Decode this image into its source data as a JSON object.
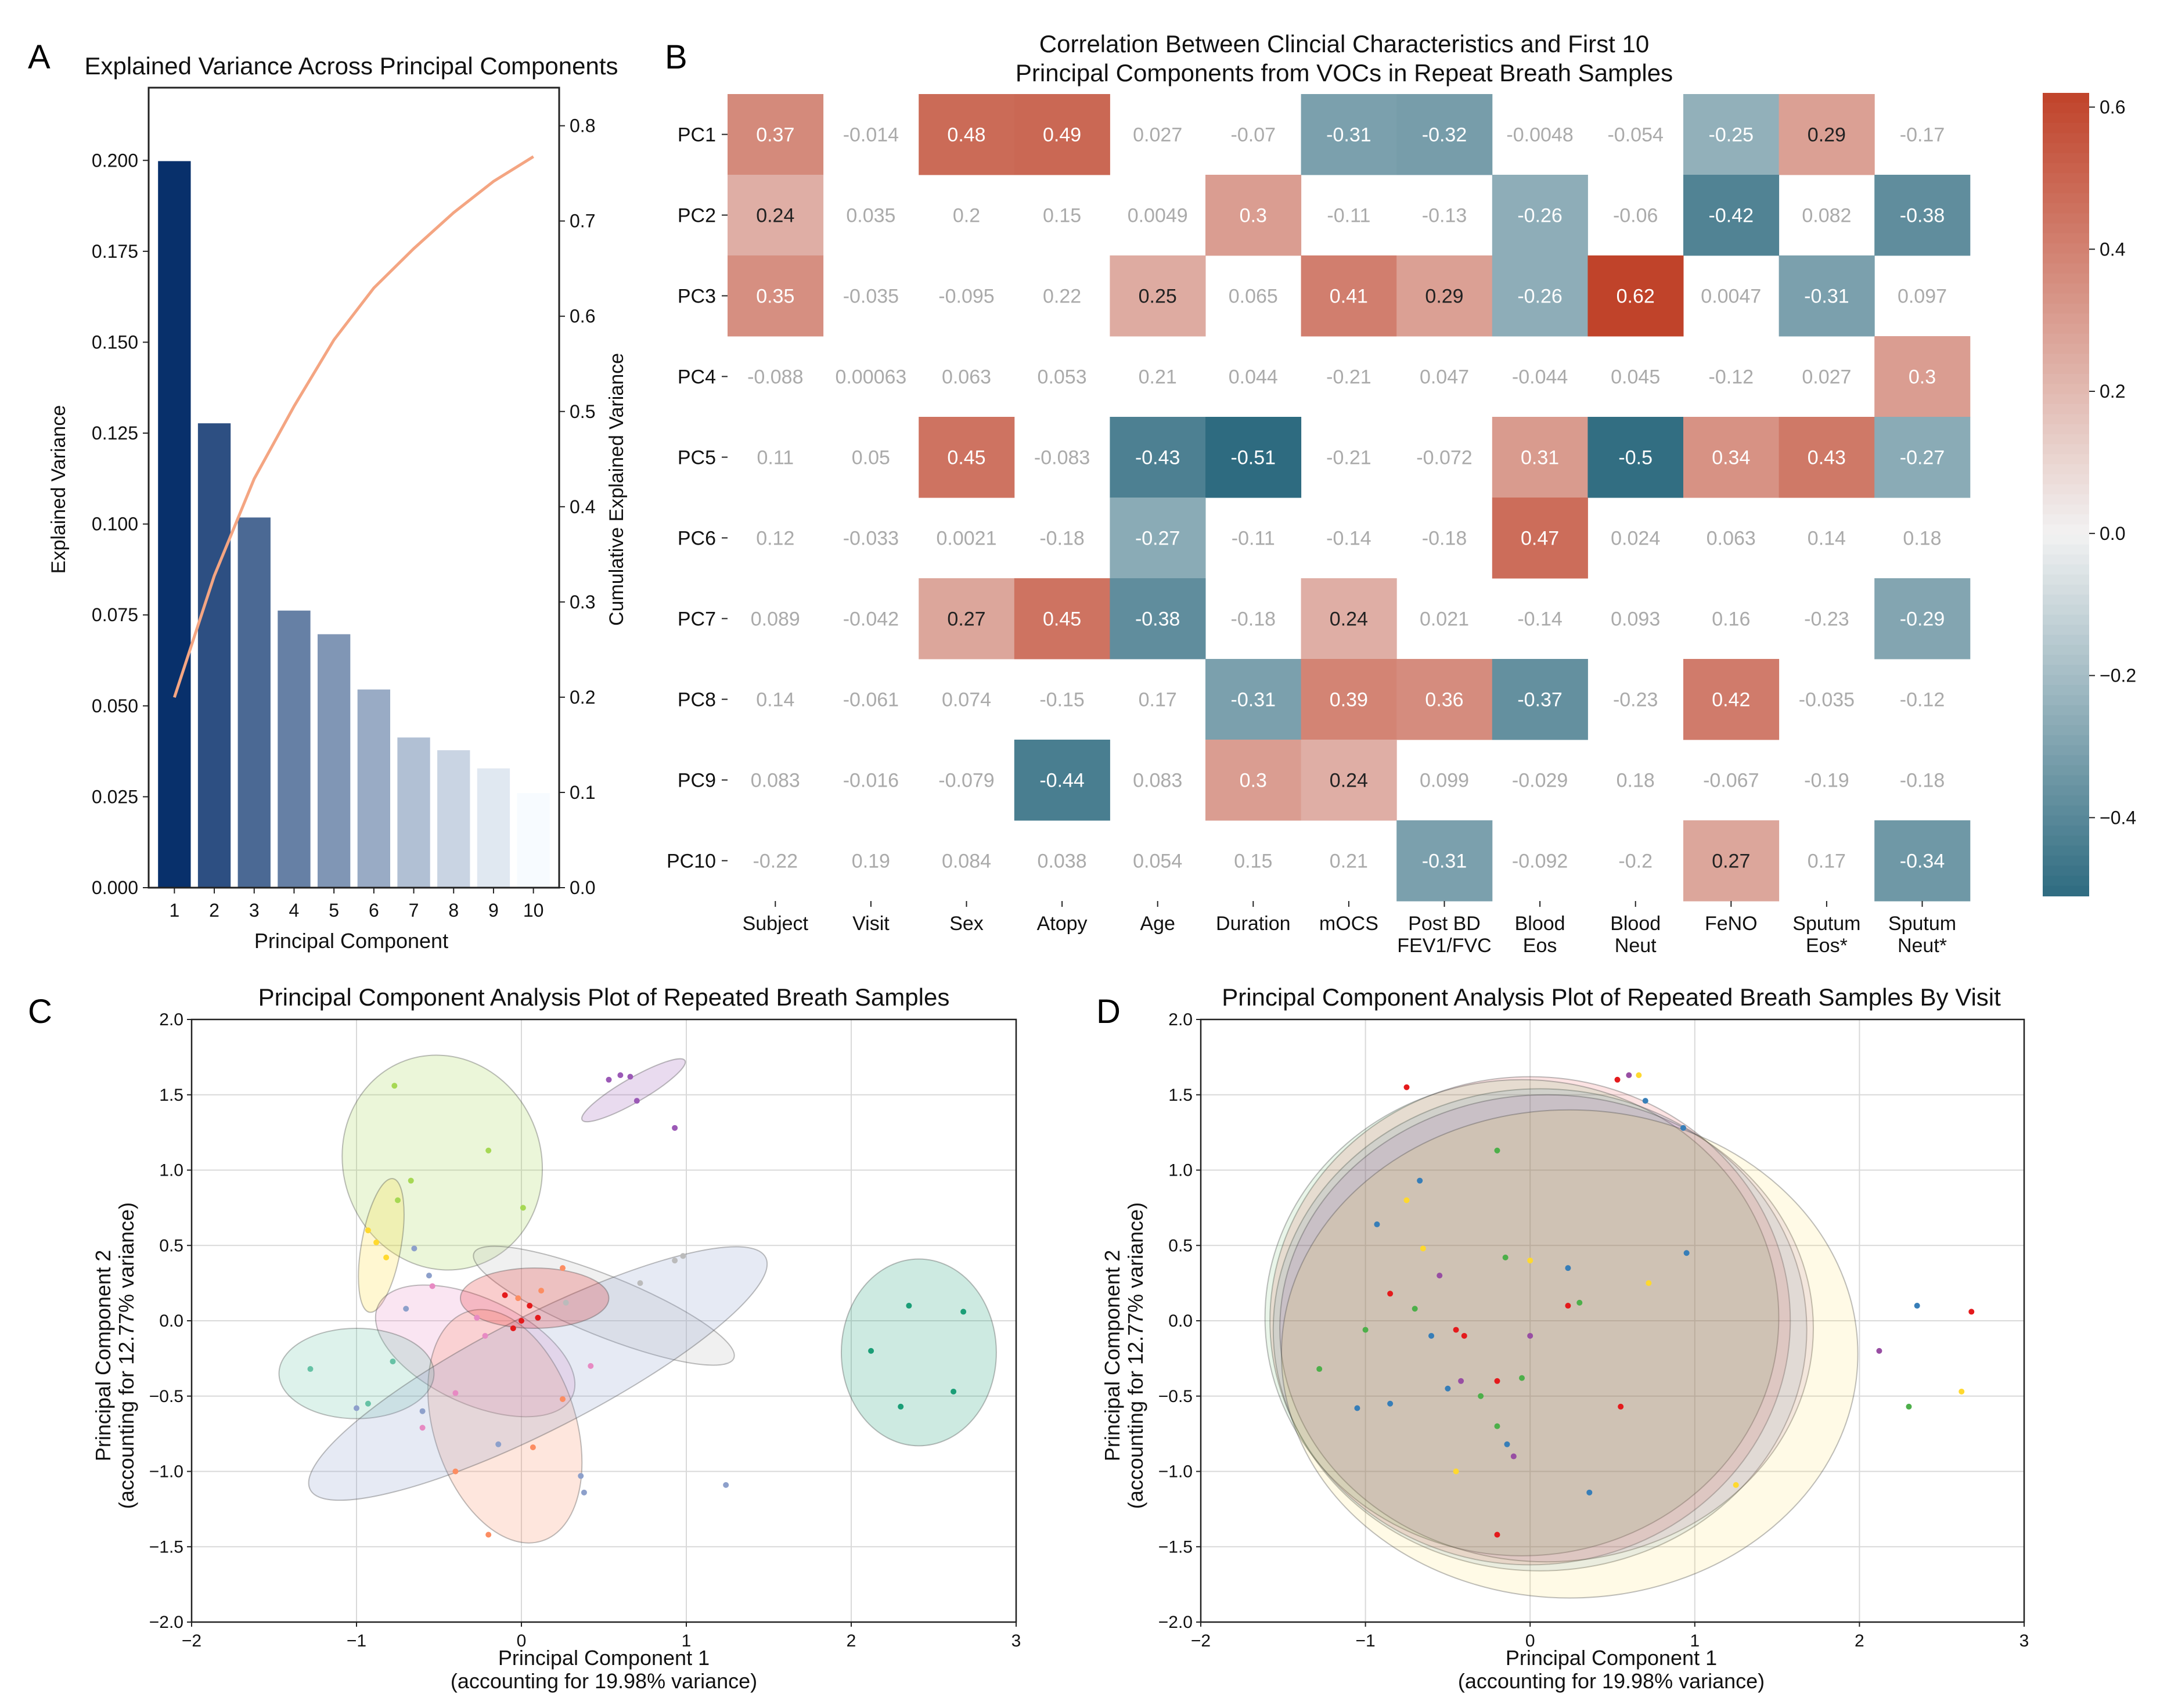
{
  "chart_data": [
    {
      "panel": "A",
      "type": "bar",
      "title": "Explained Variance Across Principal Components",
      "xlabel": "Principal Component",
      "ylabel": "Explained Variance",
      "y2label": "Cumulative Explained Variance",
      "categories": [
        "1",
        "2",
        "3",
        "4",
        "5",
        "6",
        "7",
        "8",
        "9",
        "10"
      ],
      "values": [
        0.1998,
        0.1277,
        0.1018,
        0.0762,
        0.0697,
        0.0545,
        0.0413,
        0.0378,
        0.0328,
        0.026
      ],
      "cumulative": [
        0.1998,
        0.3275,
        0.4293,
        0.5055,
        0.5752,
        0.6297,
        0.671,
        0.7088,
        0.7416,
        0.7676
      ],
      "ylim": [
        0,
        0.22
      ],
      "y2lim": [
        0,
        0.84
      ],
      "yticks": [
        "0.000",
        "0.025",
        "0.050",
        "0.075",
        "0.100",
        "0.125",
        "0.150",
        "0.175",
        "0.200"
      ],
      "y2ticks": [
        "0.0",
        "0.1",
        "0.2",
        "0.3",
        "0.4",
        "0.5",
        "0.6",
        "0.7",
        "0.8"
      ],
      "colors": {
        "line": "#f4a582",
        "bar_dark": "#08306b",
        "bar_light": "#f7fbff"
      }
    },
    {
      "panel": "B",
      "type": "heatmap",
      "title": "Correlation Between Clincial Characteristics and First 10",
      "title_line2": "Principal Components from VOCs in Repeat Breath Samples",
      "rows": [
        "PC1",
        "PC2",
        "PC3",
        "PC4",
        "PC5",
        "PC6",
        "PC7",
        "PC8",
        "PC9",
        "PC10"
      ],
      "columns": [
        [
          "Subject"
        ],
        [
          "Visit"
        ],
        [
          "Sex"
        ],
        [
          "Atopy"
        ],
        [
          "Age"
        ],
        [
          "Duration"
        ],
        [
          "mOCS"
        ],
        [
          "Post BD",
          "FEV1/FVC"
        ],
        [
          "Blood",
          "Eos"
        ],
        [
          "Blood",
          "Neut"
        ],
        [
          "FeNO"
        ],
        [
          "Sputum",
          "Eos*"
        ],
        [
          "Sputum",
          "Neut*"
        ]
      ],
      "values": [
        [
          0.37,
          -0.014,
          0.48,
          0.49,
          0.027,
          -0.07,
          -0.31,
          -0.32,
          -0.0048,
          -0.054,
          -0.25,
          0.29,
          -0.17
        ],
        [
          0.24,
          0.035,
          0.2,
          0.15,
          0.0049,
          0.3,
          -0.11,
          -0.13,
          -0.26,
          -0.06,
          -0.42,
          0.082,
          -0.38
        ],
        [
          0.35,
          -0.035,
          -0.095,
          0.22,
          0.25,
          0.065,
          0.41,
          0.29,
          -0.26,
          0.62,
          0.0047,
          -0.31,
          0.097
        ],
        [
          -0.088,
          0.00063,
          0.063,
          0.053,
          0.21,
          0.044,
          -0.21,
          0.047,
          -0.044,
          0.045,
          -0.12,
          0.027,
          0.3
        ],
        [
          0.11,
          0.05,
          0.45,
          -0.083,
          -0.43,
          -0.51,
          -0.21,
          -0.072,
          0.31,
          -0.5,
          0.34,
          0.43,
          -0.27
        ],
        [
          0.12,
          -0.033,
          0.0021,
          -0.18,
          -0.27,
          -0.11,
          -0.14,
          -0.18,
          0.47,
          0.024,
          0.063,
          0.14,
          0.18
        ],
        [
          0.089,
          -0.042,
          0.27,
          0.45,
          -0.38,
          -0.18,
          0.24,
          0.021,
          -0.14,
          0.093,
          0.16,
          -0.23,
          -0.29
        ],
        [
          0.14,
          -0.061,
          0.074,
          -0.15,
          0.17,
          -0.31,
          0.39,
          0.36,
          -0.37,
          -0.23,
          0.42,
          -0.035,
          -0.12
        ],
        [
          0.083,
          -0.016,
          -0.079,
          -0.44,
          0.083,
          0.3,
          0.24,
          0.099,
          -0.029,
          0.18,
          -0.067,
          -0.19,
          -0.18
        ],
        [
          -0.22,
          0.19,
          0.084,
          0.038,
          0.054,
          0.15,
          0.21,
          -0.31,
          -0.092,
          -0.2,
          0.27,
          0.17,
          -0.34
        ]
      ],
      "labels": [
        [
          "0.37",
          "-0.014",
          "0.48",
          "0.49",
          "0.027",
          "-0.07",
          "-0.31",
          "-0.32",
          "-0.0048",
          "-0.054",
          "-0.25",
          "0.29",
          "-0.17"
        ],
        [
          "0.24",
          "0.035",
          "0.2",
          "0.15",
          "0.0049",
          "0.3",
          "-0.11",
          "-0.13",
          "-0.26",
          "-0.06",
          "-0.42",
          "0.082",
          "-0.38"
        ],
        [
          "0.35",
          "-0.035",
          "-0.095",
          "0.22",
          "0.25",
          "0.065",
          "0.41",
          "0.29",
          "-0.26",
          "0.62",
          "0.0047",
          "-0.31",
          "0.097"
        ],
        [
          "-0.088",
          "0.00063",
          "0.063",
          "0.053",
          "0.21",
          "0.044",
          "-0.21",
          "0.047",
          "-0.044",
          "0.045",
          "-0.12",
          "0.027",
          "0.3"
        ],
        [
          "0.11",
          "0.05",
          "0.45",
          "-0.083",
          "-0.43",
          "-0.51",
          "-0.21",
          "-0.072",
          "0.31",
          "-0.5",
          "0.34",
          "0.43",
          "-0.27"
        ],
        [
          "0.12",
          "-0.033",
          "0.0021",
          "-0.18",
          "-0.27",
          "-0.11",
          "-0.14",
          "-0.18",
          "0.47",
          "0.024",
          "0.063",
          "0.14",
          "0.18"
        ],
        [
          "0.089",
          "-0.042",
          "0.27",
          "0.45",
          "-0.38",
          "-0.18",
          "0.24",
          "0.021",
          "-0.14",
          "0.093",
          "0.16",
          "-0.23",
          "-0.29"
        ],
        [
          "0.14",
          "-0.061",
          "0.074",
          "-0.15",
          "0.17",
          "-0.31",
          "0.39",
          "0.36",
          "-0.37",
          "-0.23",
          "0.42",
          "-0.035",
          "-0.12"
        ],
        [
          "0.083",
          "-0.016",
          "-0.079",
          "-0.44",
          "0.083",
          "0.3",
          "0.24",
          "0.099",
          "-0.029",
          "0.18",
          "-0.067",
          "-0.19",
          "-0.18"
        ],
        [
          "-0.22",
          "0.19",
          "0.084",
          "0.038",
          "0.054",
          "0.15",
          "0.21",
          "-0.31",
          "-0.092",
          "-0.2",
          "0.27",
          "0.17",
          "-0.34"
        ]
      ],
      "significance_threshold": 0.24,
      "colorbar": {
        "min": -0.51,
        "max": 0.62,
        "ticks": [
          0.6,
          0.4,
          0.2,
          0.0,
          -0.2,
          -0.4
        ],
        "tick_labels": [
          "0.6",
          "0.4",
          "0.2",
          "0.0",
          "−0.2",
          "−0.4"
        ]
      },
      "colors": {
        "negative": "#2e6b80",
        "neutral": "#f2f2f2",
        "positive": "#c0432a",
        "masked_text": "#aaaaaa",
        "cell_text_dark": "#222222",
        "cell_text_light": "#ffffff"
      }
    },
    {
      "panel": "C",
      "type": "scatter",
      "title": "Principal Component Analysis Plot of Repeated Breath Samples",
      "xlabel": "Principal Component 1",
      "xlabel2": "(accounting for 19.98% variance)",
      "ylabel": "Principal Component 2",
      "ylabel2": "(accounting for 12.77% variance)",
      "xlim": [
        -2,
        3
      ],
      "ylim": [
        -2.0,
        2.0
      ],
      "xticks": [
        "−2",
        "−1",
        "0",
        "1",
        "2",
        "3"
      ],
      "yticks": [
        "−2.0",
        "−1.5",
        "−1.0",
        "−0.5",
        "0.0",
        "0.5",
        "1.0",
        "1.5",
        "2.0"
      ],
      "groups": [
        {
          "color": "#1b9e77",
          "points": [
            [
              2.12,
              -0.2
            ],
            [
              2.35,
              0.1
            ],
            [
              2.68,
              0.06
            ],
            [
              2.62,
              -0.47
            ],
            [
              2.3,
              -0.57
            ]
          ],
          "ellipse": {
            "cx": 2.41,
            "cy": -0.21,
            "rx": 0.47,
            "ry": 0.62,
            "angle": 0
          }
        },
        {
          "color": "#9b59b6",
          "points": [
            [
              0.53,
              1.6
            ],
            [
              0.6,
              1.63
            ],
            [
              0.66,
              1.62
            ],
            [
              0.7,
              1.46
            ],
            [
              0.93,
              1.28
            ]
          ],
          "ellipse": {
            "cx": 0.68,
            "cy": 1.53,
            "rx": 0.36,
            "ry": 0.08,
            "angle": -30
          }
        },
        {
          "color": "#a6d854",
          "points": [
            [
              -0.77,
              1.56
            ],
            [
              -0.2,
              1.13
            ],
            [
              -0.67,
              0.93
            ],
            [
              -0.75,
              0.8
            ],
            [
              0.01,
              0.75
            ]
          ],
          "ellipse": {
            "cx": -0.48,
            "cy": 1.05,
            "rx": 0.6,
            "ry": 0.72,
            "angle": -20
          }
        },
        {
          "color": "#ffd92f",
          "points": [
            [
              -0.93,
              0.6
            ],
            [
              -0.88,
              0.52
            ],
            [
              -0.82,
              0.42
            ]
          ],
          "ellipse": {
            "cx": -0.85,
            "cy": 0.5,
            "rx": 0.12,
            "ry": 0.45,
            "angle": 10
          }
        },
        {
          "color": "#bbbbbb",
          "points": [
            [
              0.72,
              0.25
            ],
            [
              0.93,
              0.4
            ],
            [
              0.98,
              0.43
            ],
            [
              0.27,
              0.12
            ]
          ],
          "ellipse": {
            "cx": 0.5,
            "cy": 0.1,
            "rx": 0.85,
            "ry": 0.2,
            "angle": 22
          }
        },
        {
          "color": "#e78ac3",
          "points": [
            [
              -0.54,
              0.23
            ],
            [
              -0.27,
              0.02
            ],
            [
              -0.22,
              -0.1
            ],
            [
              -0.4,
              -0.48
            ],
            [
              -0.6,
              -0.71
            ],
            [
              0.42,
              -0.3
            ]
          ],
          "ellipse": {
            "cx": -0.28,
            "cy": -0.2,
            "rx": 0.65,
            "ry": 0.35,
            "angle": 25
          }
        },
        {
          "color": "#fc8d62",
          "points": [
            [
              0.25,
              0.35
            ],
            [
              0.12,
              0.2
            ],
            [
              -0.02,
              0.15
            ],
            [
              -0.4,
              -1.0
            ],
            [
              -0.2,
              -1.42
            ],
            [
              0.07,
              -0.84
            ],
            [
              0.25,
              -0.52
            ]
          ],
          "ellipse": {
            "cx": -0.1,
            "cy": -0.7,
            "rx": 0.43,
            "ry": 0.8,
            "angle": -18
          }
        },
        {
          "color": "#66c2a5",
          "points": [
            [
              -1.28,
              -0.32
            ],
            [
              -0.93,
              -0.55
            ],
            [
              -0.78,
              -0.27
            ]
          ],
          "ellipse": {
            "cx": -1.0,
            "cy": -0.35,
            "rx": 0.47,
            "ry": 0.3,
            "angle": 0
          }
        },
        {
          "color": "#8da0cb",
          "points": [
            [
              -1.0,
              -0.58
            ],
            [
              -0.65,
              0.48
            ],
            [
              -0.7,
              0.08
            ],
            [
              -0.6,
              -0.6
            ],
            [
              -0.14,
              -0.82
            ],
            [
              0.36,
              -1.03
            ],
            [
              0.38,
              -1.14
            ],
            [
              1.24,
              -1.09
            ],
            [
              -0.56,
              0.3
            ]
          ],
          "ellipse": {
            "cx": 0.1,
            "cy": -0.35,
            "rx": 1.55,
            "ry": 0.38,
            "angle": -27
          }
        },
        {
          "color": "#e41a1c",
          "points": [
            [
              -0.1,
              0.17
            ],
            [
              0.05,
              0.1
            ],
            [
              0.0,
              0.0
            ],
            [
              -0.05,
              -0.05
            ],
            [
              0.1,
              0.02
            ]
          ],
          "ellipse": {
            "cx": 0.08,
            "cy": 0.15,
            "rx": 0.45,
            "ry": 0.2,
            "angle": 0
          }
        }
      ]
    },
    {
      "panel": "D",
      "type": "scatter",
      "title": "Principal Component Analysis Plot of Repeated Breath Samples By Visit",
      "xlabel": "Principal Component 1",
      "xlabel2": "(accounting for 19.98% variance)",
      "ylabel": "Principal Component 2",
      "ylabel2": "(accounting for 12.77% variance)",
      "xlim": [
        -2,
        3
      ],
      "ylim": [
        -2.0,
        2.0
      ],
      "xticks": [
        "−2",
        "−1",
        "0",
        "1",
        "2",
        "3"
      ],
      "yticks": [
        "−2.0",
        "−1.5",
        "−1.0",
        "−0.5",
        "0.0",
        "0.5",
        "1.0",
        "1.5",
        "2.0"
      ],
      "groups": [
        {
          "color": "#e41a1c",
          "points": [
            [
              -0.75,
              1.55
            ],
            [
              0.53,
              1.6
            ],
            [
              -0.85,
              0.18
            ],
            [
              -0.45,
              -0.06
            ],
            [
              -0.4,
              -0.1
            ],
            [
              -0.2,
              -0.4
            ],
            [
              0.23,
              0.1
            ],
            [
              2.68,
              0.06
            ],
            [
              -0.2,
              -1.42
            ],
            [
              0.55,
              -0.57
            ]
          ],
          "ellipse": {
            "cx": 0.0,
            "cy": 0.0,
            "rx": 1.58,
            "ry": 1.62,
            "angle": 0
          }
        },
        {
          "color": "#377eb8",
          "points": [
            [
              0.7,
              1.46
            ],
            [
              0.93,
              1.28
            ],
            [
              -0.93,
              0.64
            ],
            [
              -0.67,
              0.93
            ],
            [
              0.23,
              0.35
            ],
            [
              0.95,
              0.45
            ],
            [
              -0.6,
              -0.1
            ],
            [
              -0.5,
              -0.45
            ],
            [
              2.35,
              0.1
            ],
            [
              0.36,
              -1.14
            ],
            [
              -0.14,
              -0.82
            ],
            [
              -1.05,
              -0.58
            ],
            [
              -0.85,
              -0.55
            ]
          ],
          "ellipse": {
            "cx": 0.06,
            "cy": -0.06,
            "rx": 1.62,
            "ry": 1.6,
            "angle": 0
          }
        },
        {
          "color": "#4daf4a",
          "points": [
            [
              -0.2,
              1.13
            ],
            [
              -0.15,
              0.42
            ],
            [
              0.3,
              0.12
            ],
            [
              -0.7,
              0.08
            ],
            [
              -0.05,
              -0.38
            ],
            [
              -1.28,
              -0.32
            ],
            [
              -1.0,
              -0.06
            ],
            [
              2.3,
              -0.57
            ],
            [
              -0.2,
              -0.7
            ],
            [
              -0.3,
              -0.5
            ]
          ],
          "ellipse": {
            "cx": -0.05,
            "cy": 0.02,
            "rx": 1.56,
            "ry": 1.58,
            "angle": 0
          }
        },
        {
          "color": "#984ea3",
          "points": [
            [
              0.6,
              1.63
            ],
            [
              -0.55,
              0.3
            ],
            [
              2.12,
              -0.2
            ],
            [
              0.0,
              -0.1
            ],
            [
              -0.1,
              -0.9
            ],
            [
              -0.42,
              -0.4
            ]
          ],
          "ellipse": {
            "cx": 0.1,
            "cy": -0.05,
            "rx": 1.62,
            "ry": 1.55,
            "angle": 0
          }
        },
        {
          "color": "#ffd92f",
          "points": [
            [
              0.66,
              1.63
            ],
            [
              -0.75,
              0.8
            ],
            [
              0.72,
              0.25
            ],
            [
              -0.65,
              0.48
            ],
            [
              2.62,
              -0.47
            ],
            [
              1.25,
              -1.09
            ],
            [
              -0.45,
              -1.0
            ],
            [
              0.0,
              0.4
            ]
          ],
          "ellipse": {
            "cx": 0.24,
            "cy": -0.22,
            "rx": 1.75,
            "ry": 1.62,
            "angle": 0
          }
        }
      ]
    }
  ],
  "panel_letters": [
    "A",
    "B",
    "C",
    "D"
  ]
}
